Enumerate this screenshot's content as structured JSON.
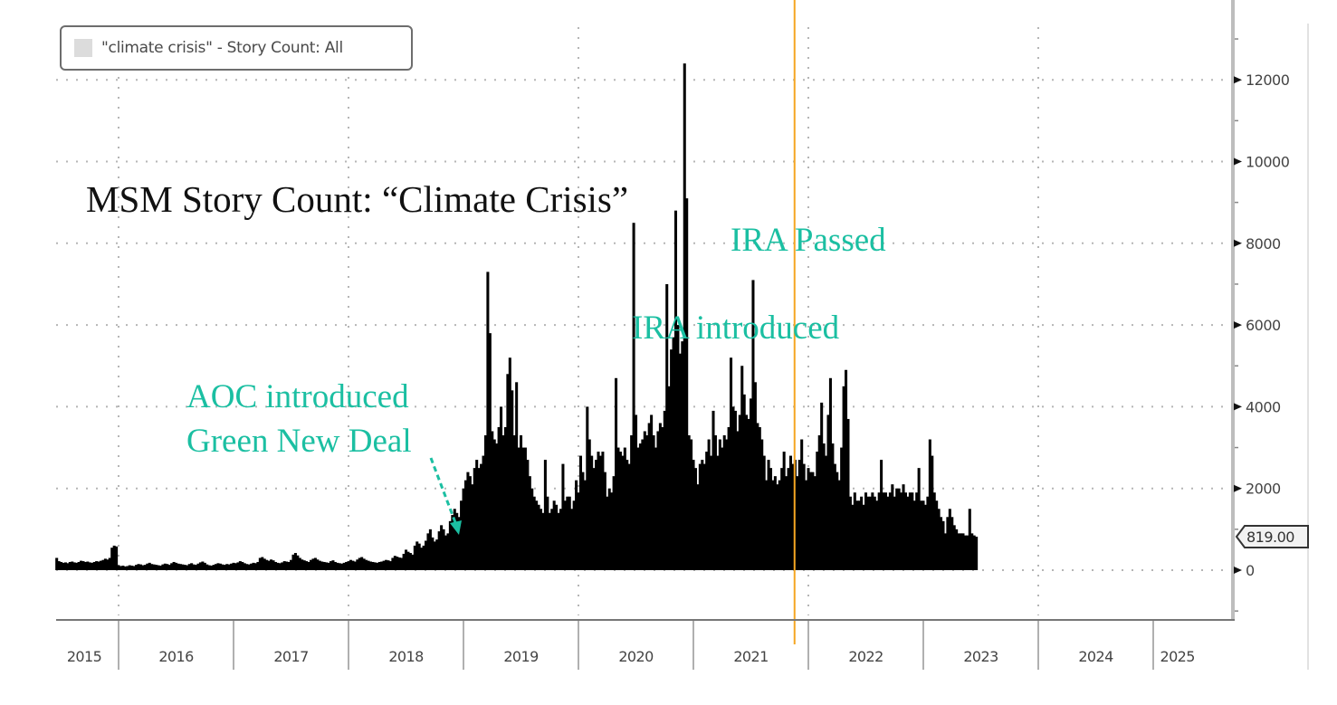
{
  "chart_data": {
    "type": "bar",
    "title": "MSM Story Count: “Climate Crisis”",
    "legend": {
      "label": "\"climate crisis\" - Story Count: All",
      "placement": "top-left",
      "swatch_color": "#dcdcdc"
    },
    "xlabel": "",
    "ylabel": "",
    "y_axis_side": "right",
    "ylim": [
      -1200,
      13000
    ],
    "yticks": [
      0,
      2000,
      4000,
      6000,
      8000,
      10000,
      12000
    ],
    "ytick_labels": [
      "0",
      "2000",
      "4000",
      "6000",
      "8000",
      "10000",
      "12000"
    ],
    "x_categories": [
      "2015",
      "2016",
      "2017",
      "2018",
      "2019",
      "2020",
      "2021",
      "2022",
      "2023",
      "2024",
      "2025"
    ],
    "x_range_years": [
      2015.45,
      2025.42
    ],
    "grid": true,
    "bar_color": "#000000",
    "last_value_label": "819.00",
    "vertical_marker": {
      "x_year": 2021.88,
      "color": "#f5a623"
    },
    "annotations": [
      {
        "text": "AOC introduced",
        "color": "#1bbfa2"
      },
      {
        "text": "Green New Deal",
        "color": "#1bbfa2",
        "arrow_to_year": 2018.95
      },
      {
        "text": "IRA Passed",
        "color": "#1bbfa2"
      },
      {
        "text": "IRA introduced",
        "color": "#1bbfa2"
      }
    ],
    "series": [
      {
        "name": "\"climate crisis\" - Story Count: All",
        "start_year": 2015.45,
        "step_years": 0.01923,
        "values": [
          300,
          220,
          200,
          180,
          190,
          170,
          200,
          210,
          190,
          180,
          200,
          230,
          220,
          200,
          210,
          190,
          180,
          200,
          220,
          210,
          230,
          250,
          280,
          260,
          300,
          550,
          600,
          580,
          120,
          100,
          110,
          90,
          100,
          120,
          110,
          100,
          130,
          150,
          140,
          120,
          130,
          160,
          180,
          150,
          140,
          130,
          120,
          110,
          140,
          160,
          150,
          130,
          170,
          200,
          180,
          160,
          150,
          140,
          130,
          120,
          150,
          170,
          140,
          130,
          160,
          190,
          210,
          180,
          140,
          120,
          110,
          130,
          150,
          170,
          160,
          140,
          130,
          150,
          140,
          160,
          180,
          170,
          190,
          220,
          200,
          170,
          150,
          140,
          160,
          180,
          170,
          200,
          300,
          320,
          280,
          250,
          230,
          260,
          240,
          200,
          180,
          170,
          190,
          220,
          210,
          200,
          250,
          380,
          420,
          360,
          300,
          260,
          240,
          220,
          200,
          250,
          280,
          300,
          260,
          230,
          210,
          200,
          190,
          180,
          220,
          240,
          200,
          180,
          170,
          160,
          180,
          200,
          220,
          250,
          230,
          210,
          260,
          300,
          320,
          280,
          250,
          230,
          210,
          200,
          190,
          180,
          200,
          210,
          230,
          250,
          240,
          220,
          300,
          350,
          330,
          310,
          300,
          400,
          500,
          450,
          420,
          380,
          600,
          700,
          650,
          550,
          600,
          720,
          900,
          1000,
          800,
          700,
          750,
          950,
          1100,
          1000,
          850,
          900,
          1200,
          1350,
          1500,
          1400,
          1300,
          1700,
          2000,
          2200,
          2400,
          2300,
          2100,
          2500,
          2700,
          2500,
          2600,
          2800,
          3300,
          7300,
          5800,
          3400,
          3200,
          3100,
          3500,
          4000,
          3300,
          3500,
          4800,
          5200,
          4400,
          3300,
          4600,
          3000,
          3300,
          3000,
          3000,
          2700,
          2300,
          2000,
          1800,
          1700,
          1600,
          1500,
          1400,
          2700,
          1800,
          1400,
          1500,
          1700,
          1600,
          1400,
          1500,
          2600,
          1700,
          1800,
          1800,
          1500,
          1700,
          2200,
          1900,
          2800,
          2400,
          2200,
          4000,
          3200,
          2800,
          2500,
          2700,
          2900,
          2800,
          2900,
          2400,
          1800,
          2000,
          1900,
          2300,
          4700,
          3000,
          2900,
          2800,
          3000,
          2700,
          2600,
          3300,
          8500,
          3800,
          3000,
          3100,
          3200,
          3400,
          3300,
          3600,
          3800,
          3300,
          3000,
          3400,
          3600,
          3500,
          3900,
          7000,
          4500,
          5400,
          5700,
          8800,
          6000,
          5300,
          5600,
          12400,
          9100,
          3300,
          3200,
          2700,
          2500,
          2100,
          2600,
          2700,
          2600,
          2900,
          3200,
          2800,
          3900,
          3300,
          2800,
          3200,
          3000,
          3300,
          3200,
          3500,
          5200,
          4000,
          3900,
          3400,
          3800,
          5000,
          4300,
          3800,
          3700,
          4200,
          7100,
          4600,
          3600,
          3500,
          3200,
          2800,
          2200,
          2700,
          2500,
          2200,
          2300,
          2100,
          2200,
          2500,
          2900,
          2300,
          2500,
          2800,
          2600,
          2700,
          2300,
          2700,
          3200,
          2600,
          2200,
          2500,
          2400,
          2400,
          2300,
          2900,
          3300,
          4100,
          3100,
          2800,
          3800,
          4700,
          3100,
          2600,
          2400,
          2200,
          3000,
          4500,
          4900,
          3700,
          1800,
          1600,
          1900,
          1700,
          1700,
          1800,
          1600,
          1900,
          1800,
          1800,
          1900,
          1800,
          1700,
          1900,
          2700,
          1900,
          1900,
          1800,
          1900,
          2100,
          1800,
          2000,
          2000,
          1900,
          2100,
          1900,
          1800,
          1900,
          1900,
          1700,
          1900,
          2500,
          1700,
          1700,
          1600,
          1800,
          3200,
          2800,
          1900,
          1700,
          1500,
          1300,
          1200,
          900,
          1300,
          1500,
          1300,
          1100,
          1000,
          900,
          900,
          900,
          850,
          850,
          1500,
          900,
          850,
          819
        ]
      }
    ]
  }
}
